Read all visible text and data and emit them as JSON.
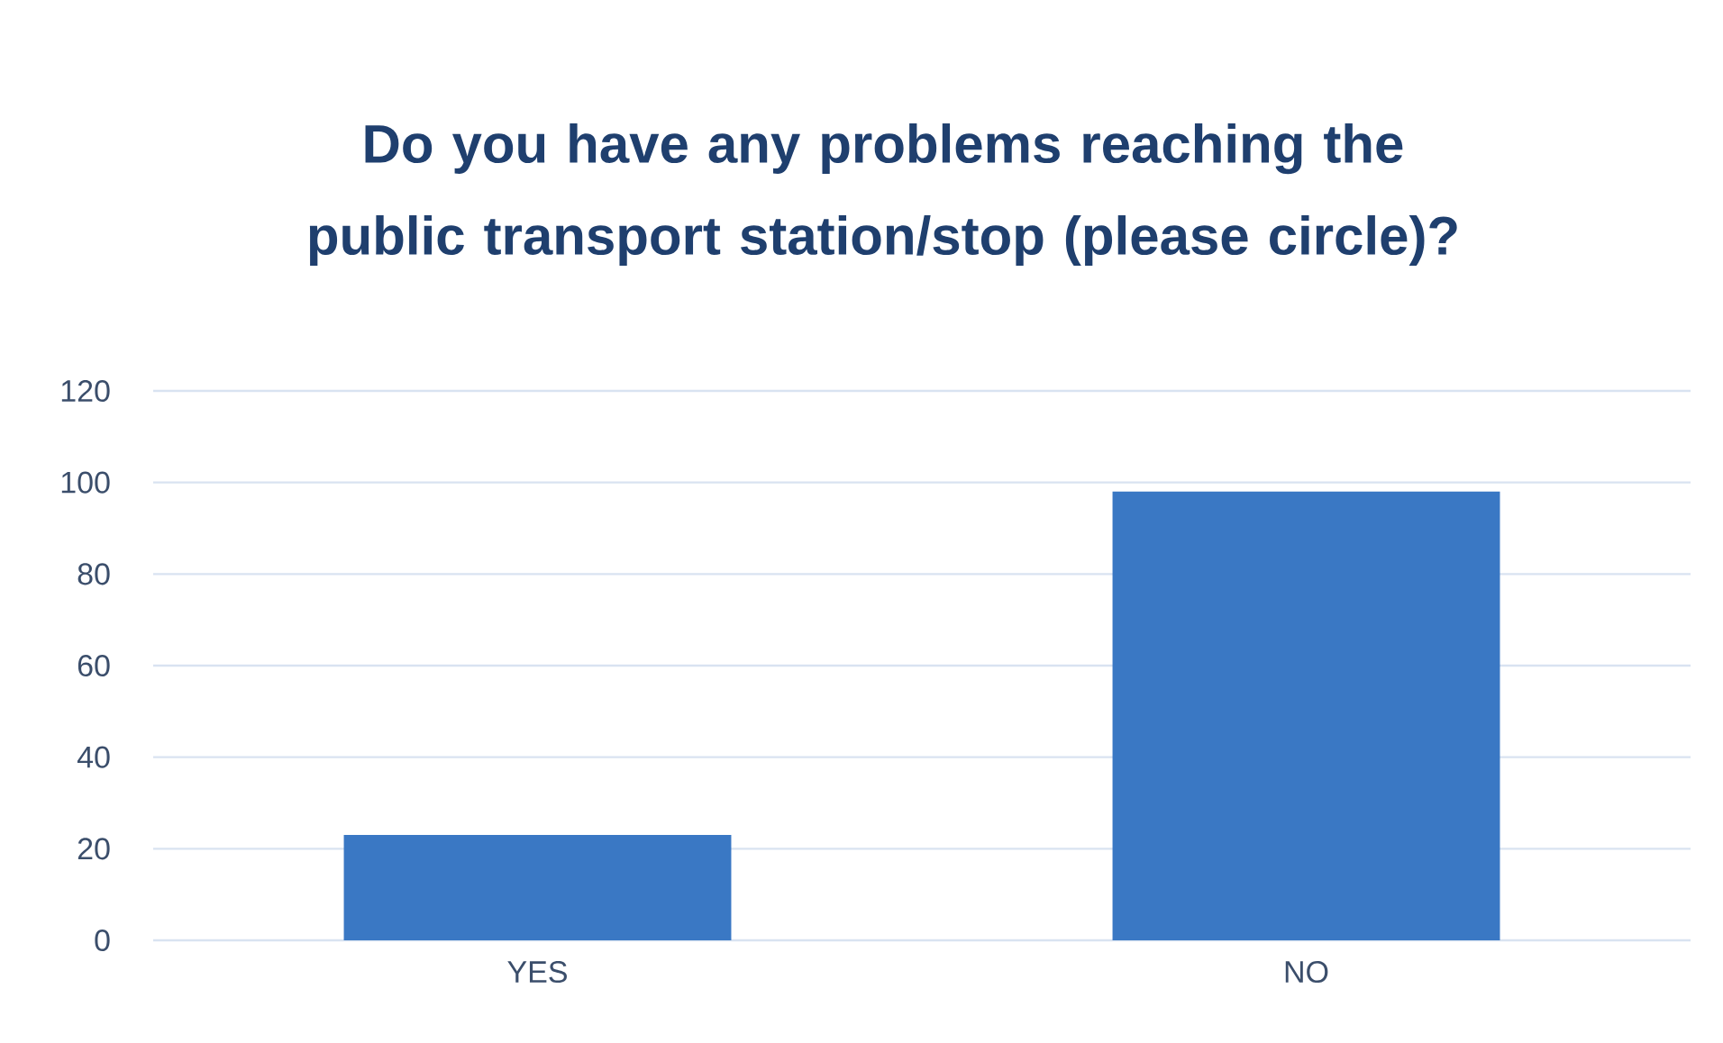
{
  "chart_data": {
    "type": "bar",
    "title": "Do you have any problems reaching the public transport station/stop (please circle)?",
    "categories": [
      "YES",
      "NO"
    ],
    "values": [
      23,
      98
    ],
    "color": "#3a78c4",
    "ylim": [
      0,
      120
    ],
    "yticks": [
      0,
      20,
      40,
      60,
      80,
      100,
      120
    ],
    "grid": "y"
  }
}
